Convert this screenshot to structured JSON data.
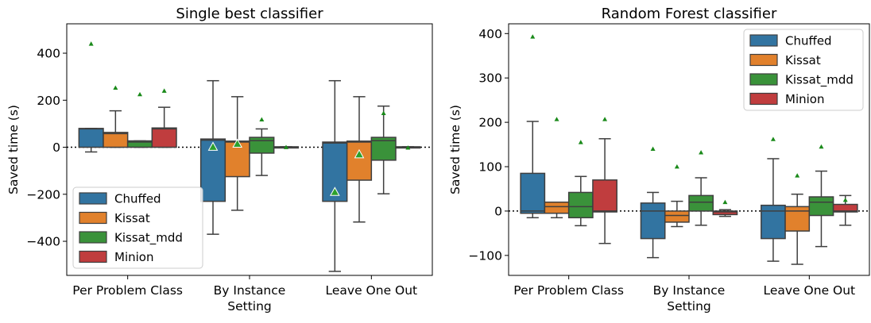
{
  "chart_data": [
    {
      "type": "box",
      "title": "Single best classifier",
      "xlabel": "Setting",
      "ylabel": "Saved time (s)",
      "ylim": [
        -545,
        525
      ],
      "yticks": [
        400,
        200,
        0,
        -200,
        -400
      ],
      "yticklabels": [
        "400",
        "200",
        "0",
        "−200",
        "−400"
      ],
      "categories": [
        "Per Problem Class",
        "By Instance",
        "Leave One Out"
      ],
      "reference_line": 0,
      "legend": {
        "placement": "lower-left",
        "items": [
          "Chuffed",
          "Kissat",
          "Kissat_mdd",
          "Minion"
        ]
      },
      "series": [
        {
          "name": "Chuffed",
          "color": "#3274a1",
          "boxes": [
            {
              "whislo": -20,
              "q1": 0,
              "med": 78,
              "q3": 80,
              "whishi": 80,
              "mean": 440,
              "mean_style": "small"
            },
            {
              "whislo": -370,
              "q1": -230,
              "med": 30,
              "q3": 35,
              "whishi": 283,
              "mean": 2,
              "mean_style": "large"
            },
            {
              "whislo": -528,
              "q1": -230,
              "med": 18,
              "q3": 22,
              "whishi": 283,
              "mean": -190,
              "mean_style": "large"
            }
          ]
        },
        {
          "name": "Kissat",
          "color": "#e1812c",
          "boxes": [
            {
              "whislo": 0,
              "q1": 0,
              "med": 58,
              "q3": 63,
              "whishi": 155,
              "mean": 253,
              "mean_style": "small"
            },
            {
              "whislo": -268,
              "q1": -125,
              "med": 22,
              "q3": 26,
              "whishi": 215,
              "mean": 15,
              "mean_style": "large"
            },
            {
              "whislo": -318,
              "q1": -140,
              "med": 22,
              "q3": 26,
              "whishi": 215,
              "mean": -30,
              "mean_style": "large"
            }
          ]
        },
        {
          "name": "Kissat_mdd",
          "color": "#3a923a",
          "boxes": [
            {
              "whislo": 0,
              "q1": 0,
              "med": 22,
              "q3": 27,
              "whishi": 27,
              "mean": 225,
              "mean_style": "small"
            },
            {
              "whislo": -120,
              "q1": -25,
              "med": 28,
              "q3": 42,
              "whishi": 78,
              "mean": 118,
              "mean_style": "small"
            },
            {
              "whislo": -198,
              "q1": -55,
              "med": 28,
              "q3": 42,
              "whishi": 175,
              "mean": 145,
              "mean_style": "small"
            }
          ]
        },
        {
          "name": "Minion",
          "color": "#c03d3e",
          "boxes": [
            {
              "whislo": 0,
              "q1": 0,
              "med": 78,
              "q3": 82,
              "whishi": 170,
              "mean": 240,
              "mean_style": "small"
            },
            {
              "whislo": -2,
              "q1": -2,
              "med": 0,
              "q3": 2,
              "whishi": 2,
              "mean": 0,
              "mean_style": "small"
            },
            {
              "whislo": -2,
              "q1": -2,
              "med": 0,
              "q3": 2,
              "whishi": 2,
              "mean": -2,
              "mean_style": "small"
            }
          ]
        }
      ]
    },
    {
      "type": "box",
      "title": "Random Forest classifier",
      "xlabel": "Setting",
      "ylabel": "Saved time (s)",
      "ylim": [
        -145,
        422
      ],
      "yticks": [
        400,
        300,
        200,
        100,
        0,
        -100
      ],
      "yticklabels": [
        "400",
        "300",
        "200",
        "100",
        "0",
        "−100"
      ],
      "categories": [
        "Per Problem Class",
        "By Instance",
        "Leave One Out"
      ],
      "reference_line": 0,
      "legend": {
        "placement": "top-right",
        "items": [
          "Chuffed",
          "Kissat",
          "Kissat_mdd",
          "Minion"
        ]
      },
      "series": [
        {
          "name": "Chuffed",
          "color": "#3274a1",
          "boxes": [
            {
              "whislo": -15,
              "q1": -5,
              "med": 0,
              "q3": 85,
              "whishi": 202,
              "mean": 393,
              "mean_style": "small"
            },
            {
              "whislo": -105,
              "q1": -62,
              "med": 0,
              "q3": 18,
              "whishi": 42,
              "mean": 140,
              "mean_style": "small"
            },
            {
              "whislo": -113,
              "q1": -62,
              "med": 0,
              "q3": 13,
              "whishi": 118,
              "mean": 162,
              "mean_style": "small"
            }
          ]
        },
        {
          "name": "Kissat",
          "color": "#e1812c",
          "boxes": [
            {
              "whislo": -15,
              "q1": -5,
              "med": 10,
              "q3": 20,
              "whishi": 20,
              "mean": 207,
              "mean_style": "small"
            },
            {
              "whislo": -35,
              "q1": -25,
              "med": -10,
              "q3": 0,
              "whishi": 22,
              "mean": 100,
              "mean_style": "small"
            },
            {
              "whislo": -120,
              "q1": -45,
              "med": 0,
              "q3": 10,
              "whishi": 38,
              "mean": 80,
              "mean_style": "small"
            }
          ]
        },
        {
          "name": "Kissat_mdd",
          "color": "#3a923a",
          "boxes": [
            {
              "whislo": -33,
              "q1": -15,
              "med": 10,
              "q3": 42,
              "whishi": 78,
              "mean": 155,
              "mean_style": "small"
            },
            {
              "whislo": -32,
              "q1": 0,
              "med": 20,
              "q3": 35,
              "whishi": 75,
              "mean": 132,
              "mean_style": "small"
            },
            {
              "whislo": -80,
              "q1": -10,
              "med": 20,
              "q3": 32,
              "whishi": 90,
              "mean": 145,
              "mean_style": "small"
            }
          ]
        },
        {
          "name": "Minion",
          "color": "#c03d3e",
          "boxes": [
            {
              "whislo": -73,
              "q1": -2,
              "med": 0,
              "q3": 70,
              "whishi": 163,
              "mean": 207,
              "mean_style": "small"
            },
            {
              "whislo": -12,
              "q1": -8,
              "med": -2,
              "q3": 0,
              "whishi": 3,
              "mean": 20,
              "mean_style": "small"
            },
            {
              "whislo": -32,
              "q1": -2,
              "med": 0,
              "q3": 15,
              "whishi": 35,
              "mean": 25,
              "mean_style": "small"
            }
          ]
        }
      ]
    }
  ]
}
